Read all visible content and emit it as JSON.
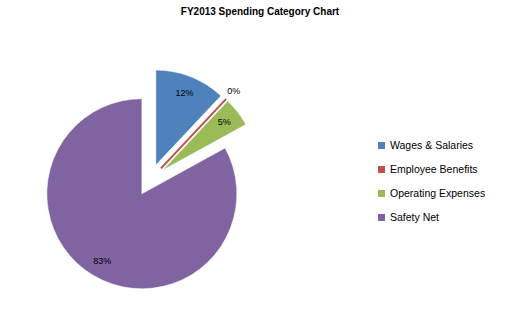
{
  "chart_data": {
    "type": "pie",
    "title": "FY2013 Spending Category Chart",
    "categories": [
      "Wages & Salaries",
      "Employee Benefits",
      "Operating Expenses",
      "Safety Net"
    ],
    "values": [
      12,
      0,
      5,
      83
    ],
    "value_labels": [
      "12%",
      "0%",
      "5%",
      "83%"
    ],
    "colors": [
      "#4f81bd",
      "#c0504d",
      "#9bbb59",
      "#8064a2"
    ],
    "data_labels": true,
    "legend": "right"
  }
}
